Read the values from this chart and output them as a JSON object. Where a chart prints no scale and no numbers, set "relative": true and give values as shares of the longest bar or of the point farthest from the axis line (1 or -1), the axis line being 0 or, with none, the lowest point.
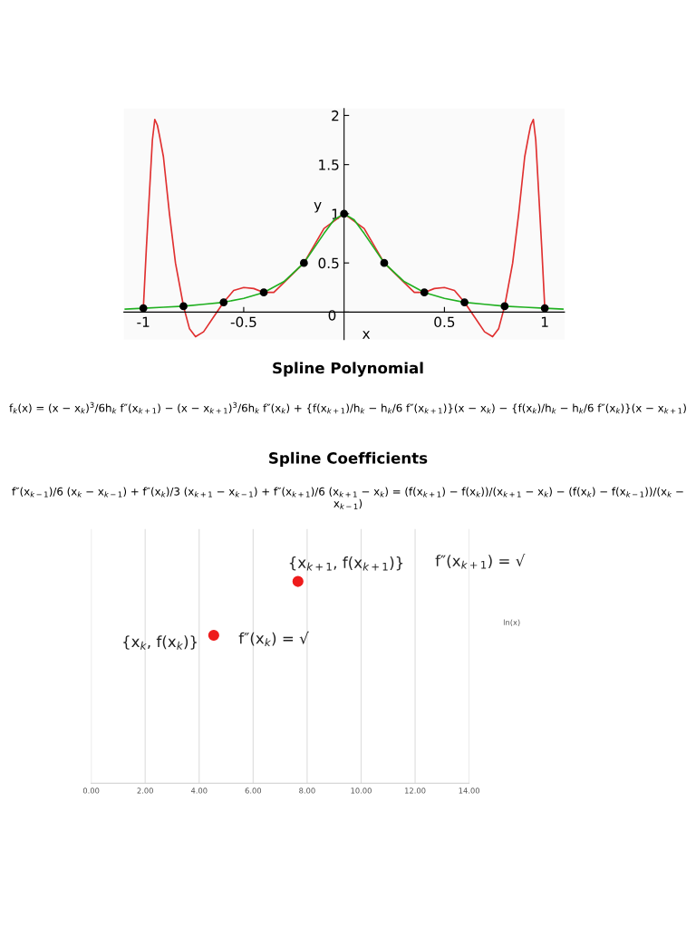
{
  "chart_data": [
    {
      "type": "line",
      "xlabel": "x",
      "ylabel": "y",
      "xlim": [
        -1.097,
        1.098
      ],
      "ylim": [
        -0.28,
        2.07
      ],
      "xticks": [
        -1,
        -0.5,
        0.5,
        1
      ],
      "yticks": [
        0,
        0.5,
        1,
        1.5,
        2
      ],
      "grid": false,
      "legend": false,
      "marker": "none",
      "line_style": "solid",
      "series": [
        {
          "color": "#e03030",
          "x": [
            -1.0,
            -0.985,
            -0.97,
            -0.955,
            -0.943,
            -0.93,
            -0.92,
            -0.9,
            -0.87,
            -0.84,
            -0.8,
            -0.77,
            -0.74,
            -0.7,
            -0.65,
            -0.6,
            -0.55,
            -0.5,
            -0.45,
            -0.4,
            -0.35,
            -0.3,
            -0.2,
            -0.1,
            0,
            0.1,
            0.2,
            0.3,
            0.35,
            0.4,
            0.45,
            0.5,
            0.55,
            0.6,
            0.65,
            0.7,
            0.74,
            0.77,
            0.8,
            0.84,
            0.87,
            0.9,
            0.92,
            0.93,
            0.943,
            0.955,
            0.97,
            0.985,
            1.0
          ],
          "values": [
            0.04,
            0.65,
            1.2,
            1.75,
            1.96,
            1.9,
            1.8,
            1.58,
            1.0,
            0.5,
            0.06,
            -0.17,
            -0.25,
            -0.2,
            -0.05,
            0.1,
            0.22,
            0.25,
            0.24,
            0.2,
            0.2,
            0.3,
            0.5,
            0.85,
            1.0,
            0.85,
            0.5,
            0.3,
            0.2,
            0.2,
            0.24,
            0.25,
            0.22,
            0.1,
            -0.05,
            -0.2,
            -0.25,
            -0.17,
            0.06,
            0.5,
            1.0,
            1.58,
            1.8,
            1.9,
            1.96,
            1.75,
            1.2,
            0.65,
            0.04
          ]
        },
        {
          "color": "#20b020",
          "x": [
            -1.09,
            -1.0,
            -0.9,
            -0.8,
            -0.7,
            -0.6,
            -0.5,
            -0.4,
            -0.3,
            -0.2,
            -0.1,
            -0.05,
            0,
            0.05,
            0.1,
            0.2,
            0.3,
            0.4,
            0.5,
            0.6,
            0.7,
            0.8,
            0.9,
            1.0,
            1.09
          ],
          "values": [
            0.03,
            0.04,
            0.05,
            0.06,
            0.08,
            0.1,
            0.14,
            0.2,
            0.31,
            0.5,
            0.8,
            0.94,
            1.0,
            0.94,
            0.8,
            0.5,
            0.31,
            0.2,
            0.14,
            0.1,
            0.08,
            0.06,
            0.05,
            0.04,
            0.03
          ]
        },
        {
          "type": "scatter",
          "color": "#000000",
          "x": [
            -1.0,
            -0.8,
            -0.6,
            -0.4,
            -0.2,
            0,
            0.2,
            0.4,
            0.6,
            0.8,
            1.0
          ],
          "values": [
            0.04,
            0.06,
            0.1,
            0.2,
            0.5,
            1.0,
            0.5,
            0.2,
            0.1,
            0.06,
            0.04
          ]
        }
      ],
      "annotations": [
        "Spline Polynomial",
        "f$_{k}$(x) = (x − x$_{k}$)$^{3}$/6h$_{k}$ f″(x$_{k+1}$) − (x − x$_{k+1}$)$^{3}$/6h$_{k}$ f″(x$_{k}$) + {f(x$_{k+1}$)/h$_{k}$ − h$_{k}$/6 f″(x$_{k+1}$)}(x − x$_{k}$) − {f(x$_{k}$)/h$_{k}$ − h$_{k}$/6 f″(x$_{k}$)}(x − x$_{k+1}$)",
        "Spline Coefficients",
        "f″(x$_{k−1}$)/6 (x$_{k}$ − x$_{k−1}$) + f″(x$_{k}$)/3 (x$_{k+1}$ − x$_{k−1}$) + f″(x$_{k+1}$)/6 (x$_{k+1}$ − x$_{k}$) = (f(x$_{k+1}$) − f(x$_{k}$))/(x$_{k+1}$ − x$_{k}$) − (f(x$_{k}$) − f(x$_{k−1}$))/(x$_{k}$ − x$_{k−1}$)"
      ]
    },
    {
      "type": "scatter",
      "xlim": [
        0,
        14
      ],
      "xticks": [
        {
          "value": 0,
          "label": "0.00"
        },
        {
          "value": 2,
          "label": "2.00"
        },
        {
          "value": 4,
          "label": "4.00"
        },
        {
          "value": 6,
          "label": "6.00"
        },
        {
          "value": 8,
          "label": "8.00"
        },
        {
          "value": 10,
          "label": "10.00"
        },
        {
          "value": 12,
          "label": "12.00"
        },
        {
          "value": 14,
          "label": "14.00"
        }
      ],
      "relative": true,
      "grid": "x",
      "marker": "circle",
      "series": [
        {
          "color": "#ee1c1c",
          "x": [
            4.54,
            7.66
          ],
          "values": [
            0.733,
            1
          ]
        }
      ],
      "annotations": [
        {
          "text": "{x$_{k}$, f(x$_{k}$)}",
          "x": 4.54,
          "y": 0.733
        },
        "f″(x$_{k}$) = √",
        {
          "text": "{x$_{k+1}$, f(x$_{k+1}$)}",
          "x": 7.66,
          "y": 1
        },
        "f″(x$_{k+1}$) = √",
        "ln(x)"
      ]
    }
  ]
}
